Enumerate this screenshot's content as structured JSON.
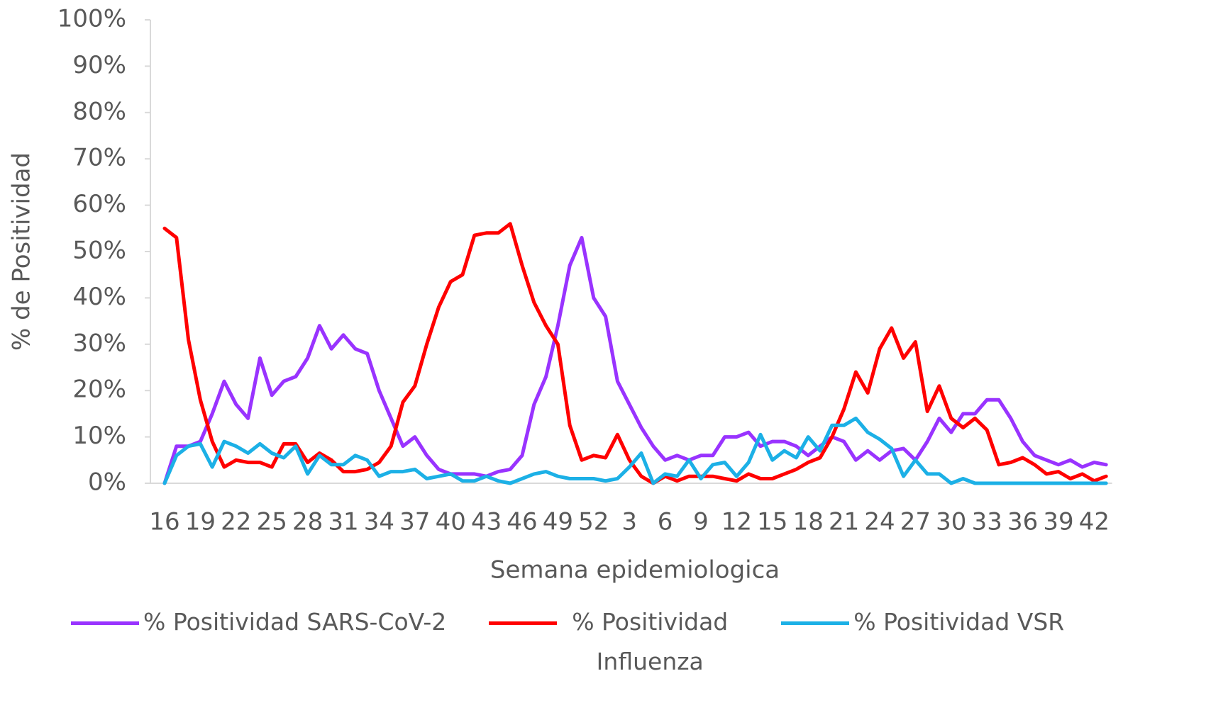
{
  "chart_data": {
    "type": "line",
    "x_label": "Semana epidemiologica",
    "y_label": "% de Positividad",
    "categories": [
      "16",
      null,
      null,
      "19",
      null,
      null,
      "22",
      null,
      null,
      "25",
      null,
      null,
      "28",
      null,
      null,
      "31",
      null,
      null,
      "34",
      null,
      null,
      "37",
      null,
      null,
      "40",
      null,
      null,
      "43",
      null,
      null,
      "46",
      null,
      null,
      "49",
      null,
      null,
      "52",
      null,
      null,
      "3",
      null,
      null,
      "6",
      null,
      null,
      "9",
      null,
      null,
      "12",
      null,
      null,
      "15",
      null,
      null,
      "18",
      null,
      null,
      "21",
      null,
      null,
      "24",
      null,
      null,
      "27",
      null,
      null,
      "30",
      null,
      null,
      "33",
      null,
      null,
      "36",
      null,
      null,
      "39",
      null,
      null,
      "42",
      null
    ],
    "series": [
      {
        "name": "% Positividad SARS-CoV-2",
        "color": "#9933ff",
        "values": [
          0,
          8,
          8,
          9,
          15,
          22,
          17,
          14,
          27,
          19,
          22,
          23,
          27,
          34,
          29,
          32,
          29,
          28,
          20,
          14,
          8,
          10,
          6,
          3,
          2,
          2,
          2,
          1.5,
          2.5,
          3,
          6,
          17,
          23,
          34,
          47,
          53,
          40,
          36,
          22,
          17,
          12,
          8,
          5,
          6,
          5,
          6,
          6,
          10,
          10,
          11,
          8,
          9,
          9,
          8,
          6,
          8,
          10,
          9,
          5,
          7,
          5,
          7,
          7.5,
          5,
          9,
          14,
          11,
          15,
          15,
          18,
          18,
          14,
          9,
          6,
          5,
          4,
          5,
          3.5,
          4.5,
          4
        ]
      },
      {
        "name": "% Positividad Influenza",
        "color": "#ff0000",
        "values": [
          55,
          53,
          31,
          18,
          9,
          3.5,
          5,
          4.5,
          4.5,
          3.5,
          8.5,
          8.5,
          4.5,
          6.5,
          5,
          2.5,
          2.5,
          3,
          4.5,
          8,
          17.5,
          21,
          30,
          38,
          43.5,
          45,
          53.5,
          54,
          54,
          56,
          47,
          39,
          34,
          30,
          12.5,
          5,
          6,
          5.5,
          10.5,
          5,
          1.5,
          0,
          1.5,
          0.5,
          1.5,
          1.5,
          1.5,
          1,
          0.5,
          2,
          1,
          1,
          2,
          3,
          4.5,
          5.5,
          10,
          16,
          24,
          19.5,
          29,
          33.5,
          27,
          30.5,
          15.5,
          21,
          14,
          12,
          14,
          11.5,
          4,
          4.5,
          5.5,
          4,
          2,
          2.5,
          1,
          2,
          0.5,
          1.5
        ]
      },
      {
        "name": "% Positividad VSR",
        "color": "#1cb0e6",
        "values": [
          0,
          6,
          8,
          8.5,
          3.5,
          9,
          8,
          6.5,
          8.5,
          6.5,
          5.5,
          8,
          2,
          6,
          4,
          4,
          6,
          5,
          1.5,
          2.5,
          2.5,
          3,
          1,
          1.5,
          2,
          0.5,
          0.5,
          1.5,
          0.5,
          0,
          1,
          2,
          2.5,
          1.5,
          1,
          1,
          1,
          0.5,
          1,
          3.5,
          6.5,
          0,
          2,
          1.5,
          5,
          1,
          4,
          4.5,
          1.5,
          4.5,
          10.5,
          5,
          7,
          5.5,
          10,
          7,
          12.5,
          12.5,
          14,
          11,
          9.5,
          7.5,
          1.5,
          5,
          2,
          2,
          0,
          1,
          0,
          0,
          0,
          0,
          0,
          0,
          0,
          0,
          0,
          0,
          0,
          0
        ]
      }
    ],
    "ylim": [
      0,
      100
    ],
    "yticks": [
      {
        "value": 0,
        "label": "0%"
      },
      {
        "value": 10,
        "label": "10%"
      },
      {
        "value": 20,
        "label": "20%"
      },
      {
        "value": 30,
        "label": "30%"
      },
      {
        "value": 40,
        "label": "40%"
      },
      {
        "value": 50,
        "label": "50%"
      },
      {
        "value": 60,
        "label": "60%"
      },
      {
        "value": 70,
        "label": "70%"
      },
      {
        "value": 80,
        "label": "80%"
      },
      {
        "value": 90,
        "label": "90%"
      },
      {
        "value": 100,
        "label": "100%"
      }
    ],
    "grid": false,
    "legend": "bottom"
  }
}
